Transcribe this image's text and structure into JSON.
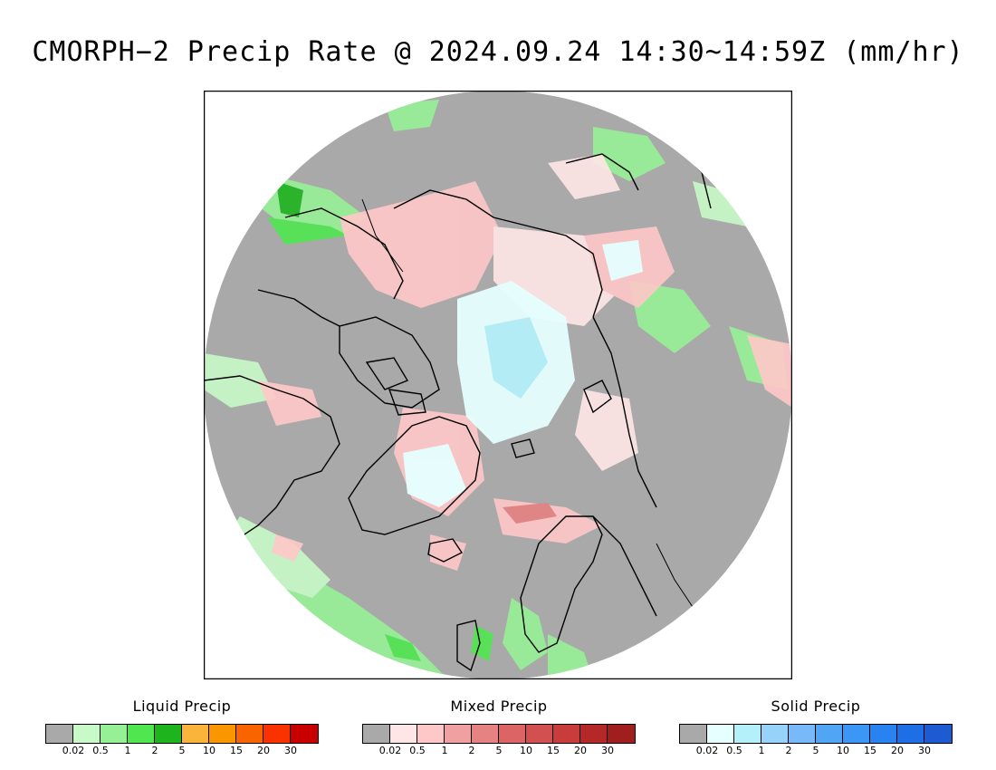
{
  "title": "CMORPH−2 Precip Rate @ 2024.09.24 14:30~14:59Z (mm/hr)",
  "map": {
    "projection": "polar-stereographic-north",
    "background_color": "#a9a9a9",
    "coastline_color": "#000000",
    "frame_color": "#000000"
  },
  "legends": [
    {
      "title": "Liquid Precip",
      "colors": [
        "#a9a9a9",
        "#c8fac8",
        "#96f096",
        "#50e650",
        "#1eb41e",
        "#fab43c",
        "#fa9600",
        "#fa6400",
        "#fa3200",
        "#c80000"
      ],
      "tick_labels": [
        "0.02",
        "0.5",
        "1",
        "2",
        "5",
        "10",
        "15",
        "20",
        "30"
      ]
    },
    {
      "title": "Mixed Precip",
      "colors": [
        "#a9a9a9",
        "#ffe6e6",
        "#ffc8c8",
        "#f0a0a0",
        "#e68282",
        "#dc6464",
        "#d25050",
        "#c83c3c",
        "#b42828",
        "#a01e1e"
      ],
      "tick_labels": [
        "0.02",
        "0.5",
        "1",
        "2",
        "5",
        "10",
        "15",
        "20",
        "30"
      ]
    },
    {
      "title": "Solid Precip",
      "colors": [
        "#a9a9a9",
        "#e6ffff",
        "#b4f0fa",
        "#96d2fa",
        "#78b9fa",
        "#50a5f5",
        "#3c96f5",
        "#2882f0",
        "#1e6ee6",
        "#1e5ad2"
      ],
      "tick_labels": [
        "0.02",
        "0.5",
        "1",
        "2",
        "5",
        "10",
        "15",
        "20",
        "30"
      ]
    }
  ]
}
